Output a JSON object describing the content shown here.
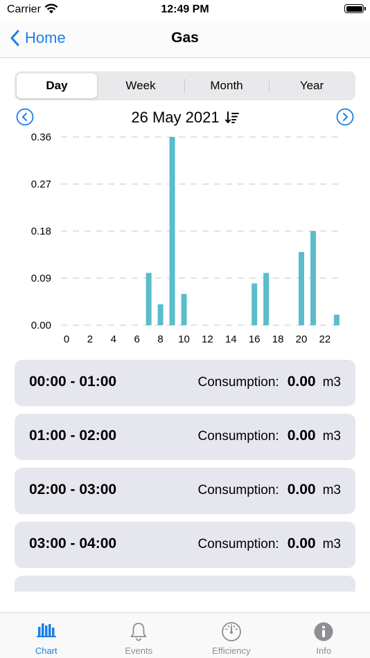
{
  "status_bar": {
    "carrier": "Carrier",
    "time": "12:49 PM"
  },
  "nav": {
    "back_label": "Home",
    "title": "Gas"
  },
  "segments": [
    "Day",
    "Week",
    "Month",
    "Year"
  ],
  "selected_segment": "Day",
  "date": "26 May 2021",
  "chart_data": {
    "type": "bar",
    "categories": [
      "0",
      "1",
      "2",
      "3",
      "4",
      "5",
      "6",
      "7",
      "8",
      "9",
      "10",
      "11",
      "12",
      "13",
      "14",
      "15",
      "16",
      "17",
      "18",
      "19",
      "20",
      "21",
      "22",
      "23"
    ],
    "values": [
      0,
      0,
      0,
      0,
      0,
      0,
      0,
      0.1,
      0.04,
      0.36,
      0.06,
      0,
      0,
      0,
      0,
      0,
      0.08,
      0.1,
      0,
      0,
      0.14,
      0.18,
      0,
      0.02
    ],
    "x_ticks": [
      "0",
      "2",
      "4",
      "6",
      "8",
      "10",
      "12",
      "14",
      "16",
      "18",
      "20",
      "22"
    ],
    "y_ticks": [
      "0.00",
      "0.09",
      "0.18",
      "0.27",
      "0.36"
    ],
    "ylim": [
      0,
      0.36
    ],
    "grid": "horizontal dashed",
    "bar_color": "#5bbccb"
  },
  "list": {
    "consumption_label": "Consumption:",
    "unit": "m3",
    "items": [
      {
        "time": "00:00 - 01:00",
        "value": "0.00"
      },
      {
        "time": "01:00 - 02:00",
        "value": "0.00"
      },
      {
        "time": "02:00 - 03:00",
        "value": "0.00"
      },
      {
        "time": "03:00 - 04:00",
        "value": "0.00"
      }
    ]
  },
  "tabs": [
    {
      "label": "Chart",
      "icon": "chart-icon",
      "active": true
    },
    {
      "label": "Events",
      "icon": "bell-icon",
      "active": false
    },
    {
      "label": "Efficiency",
      "icon": "gauge-icon",
      "active": false
    },
    {
      "label": "Info",
      "icon": "info-icon",
      "active": false
    }
  ],
  "colors": {
    "accent": "#1a7ee8",
    "bar": "#5bbccb",
    "card": "#e6e6ee"
  }
}
